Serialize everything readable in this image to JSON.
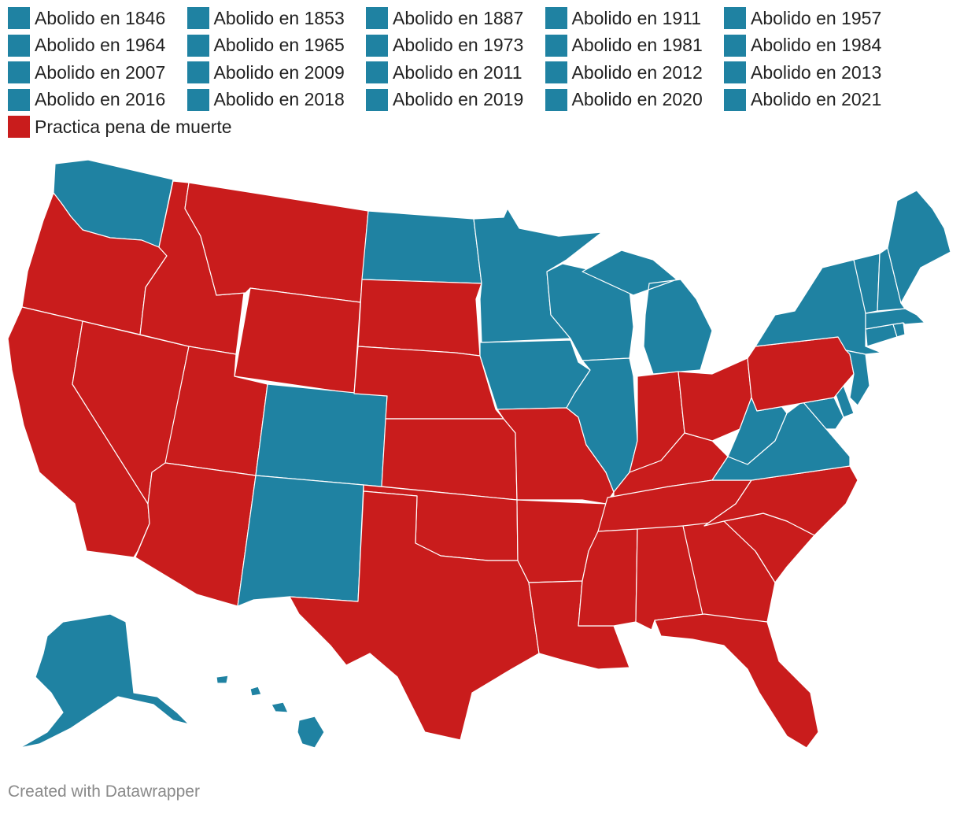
{
  "colors": {
    "abolished": "#1f82a2",
    "death_penalty": "#c91c1c"
  },
  "legend": [
    {
      "label": "Abolido en 1846",
      "color": "#1f82a2"
    },
    {
      "label": "Abolido en 1853",
      "color": "#1f82a2"
    },
    {
      "label": "Abolido en 1887",
      "color": "#1f82a2"
    },
    {
      "label": "Abolido en 1911",
      "color": "#1f82a2"
    },
    {
      "label": "Abolido en 1957",
      "color": "#1f82a2"
    },
    {
      "label": "Abolido en 1964",
      "color": "#1f82a2"
    },
    {
      "label": "Abolido en 1965",
      "color": "#1f82a2"
    },
    {
      "label": "Abolido en 1973",
      "color": "#1f82a2"
    },
    {
      "label": "Abolido en 1981",
      "color": "#1f82a2"
    },
    {
      "label": "Abolido en 1984",
      "color": "#1f82a2"
    },
    {
      "label": "Abolido en 2007",
      "color": "#1f82a2"
    },
    {
      "label": "Abolido en 2009",
      "color": "#1f82a2"
    },
    {
      "label": "Abolido en 2011",
      "color": "#1f82a2"
    },
    {
      "label": "Abolido en 2012",
      "color": "#1f82a2"
    },
    {
      "label": "Abolido en 2013",
      "color": "#1f82a2"
    },
    {
      "label": "Abolido en 2016",
      "color": "#1f82a2"
    },
    {
      "label": "Abolido en 2018",
      "color": "#1f82a2"
    },
    {
      "label": "Abolido en 2019",
      "color": "#1f82a2"
    },
    {
      "label": "Abolido en 2020",
      "color": "#1f82a2"
    },
    {
      "label": "Abolido en 2021",
      "color": "#1f82a2"
    },
    {
      "label": "Practica pena de muerte",
      "color": "#c91c1c"
    }
  ],
  "states": [
    {
      "name": "washington",
      "status": "abolished"
    },
    {
      "name": "oregon",
      "status": "death_penalty"
    },
    {
      "name": "california",
      "status": "death_penalty"
    },
    {
      "name": "nevada",
      "status": "death_penalty"
    },
    {
      "name": "idaho",
      "status": "death_penalty"
    },
    {
      "name": "montana",
      "status": "death_penalty"
    },
    {
      "name": "wyoming",
      "status": "death_penalty"
    },
    {
      "name": "utah",
      "status": "death_penalty"
    },
    {
      "name": "arizona",
      "status": "death_penalty"
    },
    {
      "name": "colorado",
      "status": "abolished"
    },
    {
      "name": "new-mexico",
      "status": "abolished"
    },
    {
      "name": "north-dakota",
      "status": "abolished"
    },
    {
      "name": "south-dakota",
      "status": "death_penalty"
    },
    {
      "name": "nebraska",
      "status": "death_penalty"
    },
    {
      "name": "kansas",
      "status": "death_penalty"
    },
    {
      "name": "oklahoma",
      "status": "death_penalty"
    },
    {
      "name": "texas",
      "status": "death_penalty"
    },
    {
      "name": "minnesota",
      "status": "abolished"
    },
    {
      "name": "iowa",
      "status": "abolished"
    },
    {
      "name": "missouri",
      "status": "death_penalty"
    },
    {
      "name": "arkansas",
      "status": "death_penalty"
    },
    {
      "name": "louisiana",
      "status": "death_penalty"
    },
    {
      "name": "wisconsin",
      "status": "abolished"
    },
    {
      "name": "illinois",
      "status": "abolished"
    },
    {
      "name": "michigan",
      "status": "abolished"
    },
    {
      "name": "indiana",
      "status": "death_penalty"
    },
    {
      "name": "ohio",
      "status": "death_penalty"
    },
    {
      "name": "kentucky",
      "status": "death_penalty"
    },
    {
      "name": "tennessee",
      "status": "death_penalty"
    },
    {
      "name": "mississippi",
      "status": "death_penalty"
    },
    {
      "name": "alabama",
      "status": "death_penalty"
    },
    {
      "name": "georgia",
      "status": "death_penalty"
    },
    {
      "name": "florida",
      "status": "death_penalty"
    },
    {
      "name": "south-carolina",
      "status": "death_penalty"
    },
    {
      "name": "north-carolina",
      "status": "death_penalty"
    },
    {
      "name": "virginia",
      "status": "abolished"
    },
    {
      "name": "west-virginia",
      "status": "abolished"
    },
    {
      "name": "pennsylvania",
      "status": "death_penalty"
    },
    {
      "name": "new-york",
      "status": "abolished"
    },
    {
      "name": "new-jersey",
      "status": "abolished"
    },
    {
      "name": "delaware",
      "status": "abolished"
    },
    {
      "name": "maryland",
      "status": "abolished"
    },
    {
      "name": "connecticut",
      "status": "abolished"
    },
    {
      "name": "rhode-island",
      "status": "abolished"
    },
    {
      "name": "massachusetts",
      "status": "abolished"
    },
    {
      "name": "vermont",
      "status": "abolished"
    },
    {
      "name": "new-hampshire",
      "status": "abolished"
    },
    {
      "name": "maine",
      "status": "abolished"
    },
    {
      "name": "alaska",
      "status": "abolished"
    },
    {
      "name": "hawaii",
      "status": "abolished"
    }
  ],
  "credit": "Created with Datawrapper"
}
